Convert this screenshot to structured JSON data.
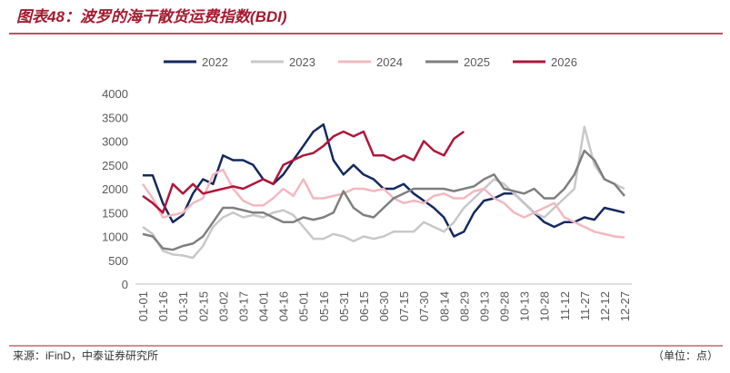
{
  "title": "图表48：波罗的海干散货运费指数(BDI)",
  "source": "来源：iFinD，中泰证券研究所",
  "unit": "（单位：点）",
  "chart_data": {
    "type": "line",
    "categories": [
      "01-01",
      null,
      "01-16",
      null,
      "01-31",
      null,
      "02-15",
      null,
      "03-02",
      null,
      "03-17",
      null,
      "04-01",
      null,
      "04-16",
      null,
      "05-01",
      null,
      "05-16",
      null,
      "05-31",
      null,
      "06-15",
      null,
      "06-30",
      null,
      "07-15",
      null,
      "07-30",
      null,
      "08-14",
      null,
      "08-29",
      null,
      "09-13",
      null,
      "09-28",
      null,
      "10-13",
      null,
      "10-28",
      null,
      "11-12",
      null,
      "11-27",
      null,
      "12-12",
      null,
      "12-27"
    ],
    "ylim": [
      0,
      4000
    ],
    "yticks": [
      0,
      500,
      1000,
      1500,
      2000,
      2500,
      3000,
      3500,
      4000
    ],
    "grid": false,
    "legend": "top",
    "series": [
      {
        "name": "2022",
        "color": "#14295e",
        "values": [
          2280,
          2280,
          1700,
          1300,
          1450,
          1900,
          2200,
          2100,
          2700,
          2600,
          2600,
          2500,
          2200,
          2100,
          2300,
          2600,
          2900,
          3200,
          3350,
          2600,
          2300,
          2500,
          2300,
          2200,
          2000,
          2000,
          2100,
          1900,
          1750,
          1600,
          1400,
          1000,
          1100,
          1500,
          1750,
          1800,
          1900,
          1900,
          1700,
          1500,
          1300,
          1200,
          1300,
          1300,
          1400,
          1350,
          1600,
          1550,
          1500
        ]
      },
      {
        "name": "2023",
        "color": "#c8c8c8",
        "values": [
          1200,
          1050,
          700,
          620,
          600,
          550,
          800,
          1200,
          1400,
          1500,
          1400,
          1450,
          1400,
          1500,
          1550,
          1450,
          1200,
          950,
          950,
          1050,
          1000,
          900,
          1000,
          950,
          1000,
          1100,
          1100,
          1100,
          1300,
          1200,
          1100,
          1300,
          1600,
          1800,
          2000,
          2200,
          2100,
          1900,
          1700,
          1500,
          1400,
          1600,
          1800,
          2000,
          3300,
          2500,
          2200,
          2100,
          2000
        ]
      },
      {
        "name": "2024",
        "color": "#f2b8c0",
        "values": [
          2100,
          1800,
          1400,
          1450,
          1500,
          1700,
          1800,
          2300,
          2400,
          2000,
          1750,
          1650,
          1650,
          1800,
          2000,
          1850,
          2200,
          1800,
          1800,
          1850,
          1900,
          2000,
          2000,
          1950,
          2000,
          1800,
          1700,
          1750,
          1700,
          1850,
          1900,
          1800,
          1800,
          1950,
          2000,
          1800,
          1700,
          1500,
          1400,
          1500,
          1600,
          1700,
          1400,
          1300,
          1200,
          1100,
          1050,
          1000,
          980
        ]
      },
      {
        "name": "2025",
        "color": "#7f7f7f",
        "values": [
          1050,
          1000,
          750,
          720,
          800,
          850,
          1000,
          1300,
          1600,
          1600,
          1550,
          1500,
          1500,
          1400,
          1300,
          1300,
          1400,
          1350,
          1400,
          1500,
          1950,
          1600,
          1450,
          1400,
          1600,
          1800,
          1900,
          2000,
          2000,
          2000,
          2000,
          1950,
          2000,
          2050,
          2200,
          2300,
          2000,
          1950,
          1900,
          2000,
          1800,
          1800,
          2000,
          2300,
          2800,
          2600,
          2200,
          2100,
          1850
        ]
      },
      {
        "name": "2026",
        "color": "#b0163a",
        "values": [
          1850,
          1700,
          1500,
          2100,
          1900,
          2100,
          1900,
          1950,
          2000,
          2050,
          2000,
          2100,
          2200,
          2100,
          2500,
          2600,
          2700,
          2750,
          2900,
          3100,
          3200,
          3100,
          3200,
          2700,
          2700,
          2600,
          2700,
          2600,
          3000,
          2800,
          2700,
          3050,
          3200,
          null,
          null,
          null,
          null,
          null,
          null,
          null,
          null,
          null,
          null,
          null,
          null,
          null,
          null,
          null,
          null
        ]
      }
    ]
  }
}
